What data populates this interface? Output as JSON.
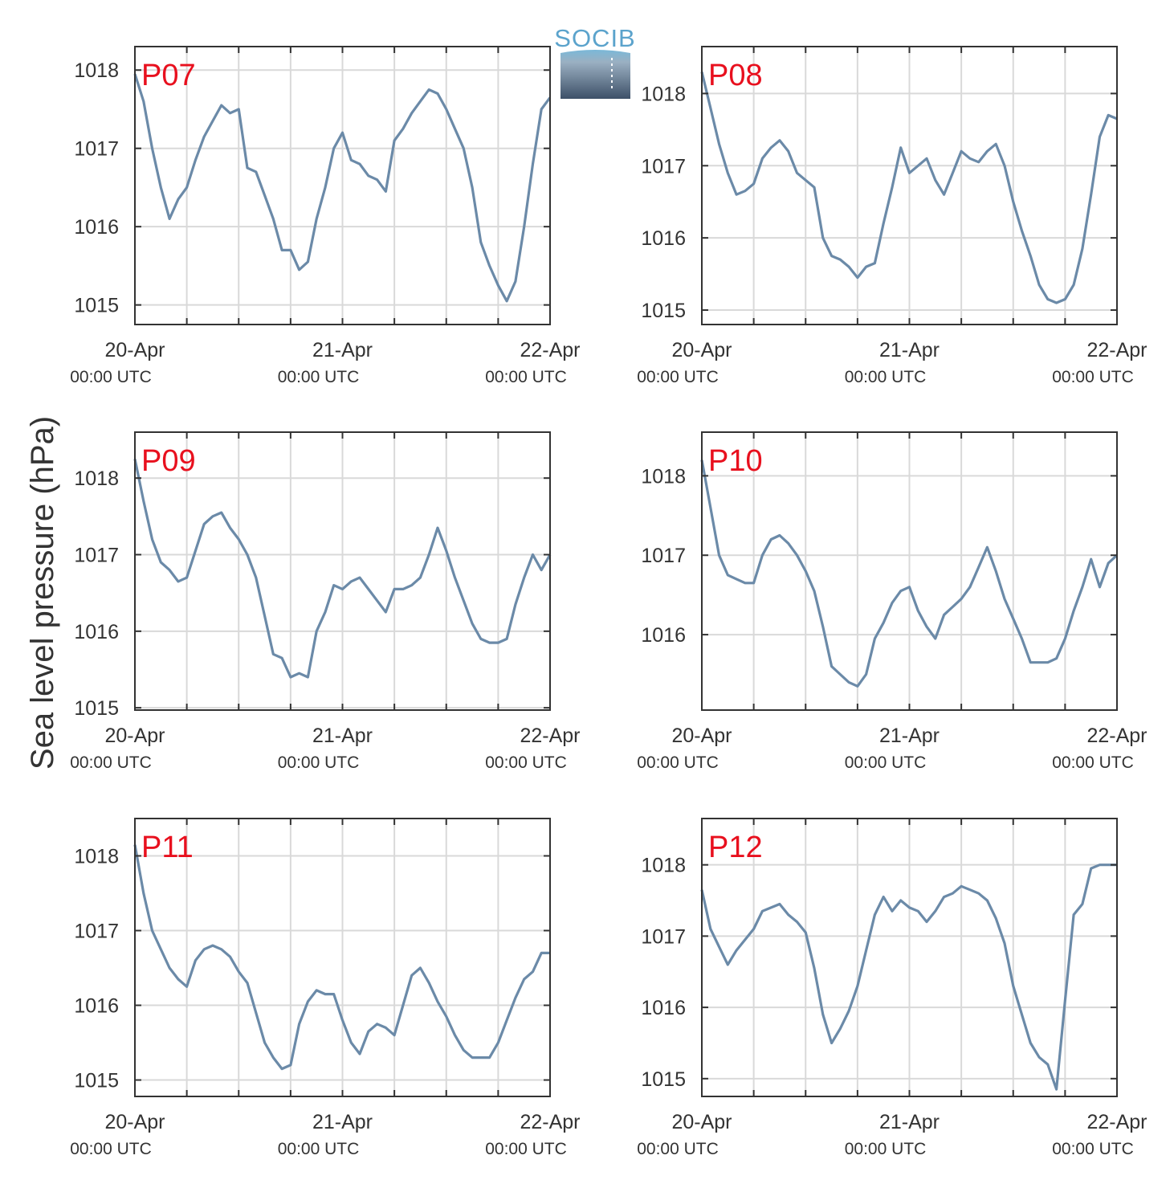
{
  "figure": {
    "ylabel": "Sea level pressure (hPa)",
    "logo_text": "SOCIB",
    "colors": {
      "line": "#6b8aa8",
      "label": "#e8101e",
      "grid": "#d9d9d9",
      "axis": "#333333",
      "logo_text": "#5ba3cc",
      "logo_top": "#7ab8d8",
      "logo_bottom": "#3d5068"
    }
  },
  "chart_data": [
    {
      "type": "line",
      "label": "P07",
      "xlabel": "",
      "ylabel": "Sea level pressure (hPa)",
      "x_ticks": [
        {
          "date": "20-Apr",
          "time": "00:00 UTC"
        },
        {
          "date": "21-Apr",
          "time": "00:00 UTC"
        },
        {
          "date": "22-Apr",
          "time": "00:00 UTC"
        }
      ],
      "x_hours": [
        0,
        1,
        2,
        3,
        4,
        5,
        6,
        7,
        8,
        9,
        10,
        11,
        12,
        13,
        14,
        15,
        16,
        17,
        18,
        19,
        20,
        21,
        22,
        23,
        24,
        25,
        26,
        27,
        28,
        29,
        30,
        31,
        32,
        33,
        34,
        35,
        36,
        37,
        38,
        39,
        40,
        41,
        42,
        43,
        44,
        45,
        46,
        47,
        48
      ],
      "y": [
        1017.95,
        1017.6,
        1017.0,
        1016.5,
        1016.1,
        1016.35,
        1016.5,
        1016.85,
        1017.15,
        1017.35,
        1017.55,
        1017.45,
        1017.5,
        1016.75,
        1016.7,
        1016.4,
        1016.1,
        1015.7,
        1015.7,
        1015.45,
        1015.55,
        1016.1,
        1016.5,
        1017.0,
        1017.2,
        1016.85,
        1016.8,
        1016.65,
        1016.6,
        1016.45,
        1017.1,
        1017.25,
        1017.45,
        1017.6,
        1017.75,
        1017.7,
        1017.5,
        1017.25,
        1017.0,
        1016.5,
        1015.8,
        1015.5,
        1015.25,
        1015.05,
        1015.3,
        1016.0,
        1016.8,
        1017.5,
        1017.65
      ],
      "ylim": [
        1014.75,
        1018.3
      ],
      "yticks": [
        1015,
        1016,
        1017,
        1018
      ],
      "grid": true
    },
    {
      "type": "line",
      "label": "P08",
      "xlabel": "",
      "ylabel": "Sea level pressure (hPa)",
      "x_ticks": [
        {
          "date": "20-Apr",
          "time": "00:00 UTC"
        },
        {
          "date": "21-Apr",
          "time": "00:00 UTC"
        },
        {
          "date": "22-Apr",
          "time": "00:00 UTC"
        }
      ],
      "x_hours": [
        0,
        1,
        2,
        3,
        4,
        5,
        6,
        7,
        8,
        9,
        10,
        11,
        12,
        13,
        14,
        15,
        16,
        17,
        18,
        19,
        20,
        21,
        22,
        23,
        24,
        25,
        26,
        27,
        28,
        29,
        30,
        31,
        32,
        33,
        34,
        35,
        36,
        37,
        38,
        39,
        40,
        41,
        42,
        43,
        44,
        45,
        46,
        47,
        48
      ],
      "y": [
        1018.3,
        1017.8,
        1017.3,
        1016.9,
        1016.6,
        1016.65,
        1016.75,
        1017.1,
        1017.25,
        1017.35,
        1017.2,
        1016.9,
        1016.8,
        1016.7,
        1016.0,
        1015.75,
        1015.7,
        1015.6,
        1015.45,
        1015.6,
        1015.65,
        1016.2,
        1016.7,
        1017.25,
        1016.9,
        1017.0,
        1017.1,
        1016.8,
        1016.6,
        1016.9,
        1017.2,
        1017.1,
        1017.05,
        1017.2,
        1017.3,
        1017.0,
        1016.5,
        1016.1,
        1015.75,
        1015.35,
        1015.15,
        1015.1,
        1015.15,
        1015.35,
        1015.85,
        1016.6,
        1017.4,
        1017.7,
        1017.65
      ],
      "ylim": [
        1014.8,
        1018.65
      ],
      "yticks": [
        1015,
        1016,
        1017,
        1018
      ],
      "grid": true
    },
    {
      "type": "line",
      "label": "P09",
      "xlabel": "",
      "ylabel": "Sea level pressure (hPa)",
      "x_ticks": [
        {
          "date": "20-Apr",
          "time": "00:00 UTC"
        },
        {
          "date": "21-Apr",
          "time": "00:00 UTC"
        },
        {
          "date": "22-Apr",
          "time": "00:00 UTC"
        }
      ],
      "x_hours": [
        0,
        1,
        2,
        3,
        4,
        5,
        6,
        7,
        8,
        9,
        10,
        11,
        12,
        13,
        14,
        15,
        16,
        17,
        18,
        19,
        20,
        21,
        22,
        23,
        24,
        25,
        26,
        27,
        28,
        29,
        30,
        31,
        32,
        33,
        34,
        35,
        36,
        37,
        38,
        39,
        40,
        41,
        42,
        43,
        44,
        45,
        46,
        47,
        48
      ],
      "y": [
        1018.25,
        1017.7,
        1017.2,
        1016.9,
        1016.8,
        1016.65,
        1016.7,
        1017.05,
        1017.4,
        1017.5,
        1017.55,
        1017.35,
        1017.2,
        1017.0,
        1016.7,
        1016.2,
        1015.7,
        1015.65,
        1015.4,
        1015.45,
        1015.4,
        1016.0,
        1016.25,
        1016.6,
        1016.55,
        1016.65,
        1016.7,
        1016.55,
        1016.4,
        1016.25,
        1016.55,
        1016.55,
        1016.6,
        1016.7,
        1017.0,
        1017.35,
        1017.05,
        1016.7,
        1016.4,
        1016.1,
        1015.9,
        1015.85,
        1015.85,
        1015.9,
        1016.35,
        1016.7,
        1017.0,
        1016.8,
        1017.0
      ],
      "ylim": [
        1014.97,
        1018.6
      ],
      "yticks": [
        1015,
        1016,
        1017,
        1018
      ],
      "grid": true
    },
    {
      "type": "line",
      "label": "P10",
      "xlabel": "",
      "ylabel": "Sea level pressure (hPa)",
      "x_ticks": [
        {
          "date": "20-Apr",
          "time": "00:00 UTC"
        },
        {
          "date": "21-Apr",
          "time": "00:00 UTC"
        },
        {
          "date": "22-Apr",
          "time": "00:00 UTC"
        }
      ],
      "x_hours": [
        0,
        1,
        2,
        3,
        4,
        5,
        6,
        7,
        8,
        9,
        10,
        11,
        12,
        13,
        14,
        15,
        16,
        17,
        18,
        19,
        20,
        21,
        22,
        23,
        24,
        25,
        26,
        27,
        28,
        29,
        30,
        31,
        32,
        33,
        34,
        35,
        36,
        37,
        38,
        39,
        40,
        41,
        42,
        43,
        44,
        45,
        46,
        47,
        48
      ],
      "y": [
        1018.2,
        1017.6,
        1017.0,
        1016.75,
        1016.7,
        1016.65,
        1016.65,
        1017.0,
        1017.2,
        1017.25,
        1017.15,
        1017.0,
        1016.8,
        1016.55,
        1016.1,
        1015.6,
        1015.5,
        1015.4,
        1015.35,
        1015.5,
        1015.95,
        1016.15,
        1016.4,
        1016.55,
        1016.6,
        1016.3,
        1016.1,
        1015.95,
        1016.25,
        1016.35,
        1016.45,
        1016.6,
        1016.85,
        1017.1,
        1016.8,
        1016.45,
        1016.2,
        1015.95,
        1015.65,
        1015.65,
        1015.65,
        1015.7,
        1015.95,
        1016.3,
        1016.6,
        1016.95,
        1016.6,
        1016.9,
        1017.0
      ],
      "ylim": [
        1015.05,
        1018.55
      ],
      "yticks": [
        1016,
        1017,
        1018
      ],
      "grid": true
    },
    {
      "type": "line",
      "label": "P11",
      "xlabel": "",
      "ylabel": "Sea level pressure (hPa)",
      "x_ticks": [
        {
          "date": "20-Apr",
          "time": "00:00 UTC"
        },
        {
          "date": "21-Apr",
          "time": "00:00 UTC"
        },
        {
          "date": "22-Apr",
          "time": "00:00 UTC"
        }
      ],
      "x_hours": [
        0,
        1,
        2,
        3,
        4,
        5,
        6,
        7,
        8,
        9,
        10,
        11,
        12,
        13,
        14,
        15,
        16,
        17,
        18,
        19,
        20,
        21,
        22,
        23,
        24,
        25,
        26,
        27,
        28,
        29,
        30,
        31,
        32,
        33,
        34,
        35,
        36,
        37,
        38,
        39,
        40,
        41,
        42,
        43,
        44,
        45,
        46,
        47,
        48
      ],
      "y": [
        1018.15,
        1017.5,
        1017.0,
        1016.75,
        1016.5,
        1016.35,
        1016.25,
        1016.6,
        1016.75,
        1016.8,
        1016.75,
        1016.65,
        1016.45,
        1016.3,
        1015.9,
        1015.5,
        1015.3,
        1015.15,
        1015.2,
        1015.75,
        1016.05,
        1016.2,
        1016.15,
        1016.15,
        1015.8,
        1015.5,
        1015.35,
        1015.65,
        1015.75,
        1015.7,
        1015.6,
        1016.0,
        1016.4,
        1016.5,
        1016.3,
        1016.05,
        1015.85,
        1015.6,
        1015.4,
        1015.3,
        1015.3,
        1015.3,
        1015.5,
        1015.8,
        1016.1,
        1016.35,
        1016.45,
        1016.7,
        1016.7
      ],
      "ylim": [
        1014.78,
        1018.5
      ],
      "yticks": [
        1015,
        1016,
        1017,
        1018
      ],
      "grid": true
    },
    {
      "type": "line",
      "label": "P12",
      "xlabel": "",
      "ylabel": "Sea level pressure (hPa)",
      "x_ticks": [
        {
          "date": "20-Apr",
          "time": "00:00 UTC"
        },
        {
          "date": "21-Apr",
          "time": "00:00 UTC"
        },
        {
          "date": "22-Apr",
          "time": "00:00 UTC"
        }
      ],
      "x_hours": [
        0,
        1,
        2,
        3,
        4,
        5,
        6,
        7,
        8,
        9,
        10,
        11,
        12,
        13,
        14,
        15,
        16,
        17,
        18,
        19,
        20,
        21,
        22,
        23,
        24,
        25,
        26,
        27,
        28,
        29,
        30,
        31,
        32,
        33,
        34,
        35,
        36,
        37,
        38,
        39,
        40,
        41,
        42,
        43,
        44,
        45,
        46,
        47,
        48
      ],
      "y": [
        1017.65,
        1017.1,
        1016.85,
        1016.6,
        1016.8,
        1016.95,
        1017.1,
        1017.35,
        1017.4,
        1017.45,
        1017.3,
        1017.2,
        1017.05,
        1016.55,
        1015.9,
        1015.5,
        1015.7,
        1015.95,
        1016.3,
        1016.8,
        1017.3,
        1017.55,
        1017.35,
        1017.5,
        1017.4,
        1017.35,
        1017.2,
        1017.35,
        1017.55,
        1017.6,
        1017.7,
        1017.65,
        1017.6,
        1017.5,
        1017.25,
        1016.9,
        1016.3,
        1015.9,
        1015.5,
        1015.3,
        1015.2,
        1014.85,
        1016.1,
        1017.3,
        1017.45,
        1017.95,
        1018.0,
        1018.0,
        1018.0
      ],
      "ylim": [
        1014.75,
        1018.65
      ],
      "yticks": [
        1015,
        1016,
        1017,
        1018
      ],
      "grid": true
    }
  ]
}
